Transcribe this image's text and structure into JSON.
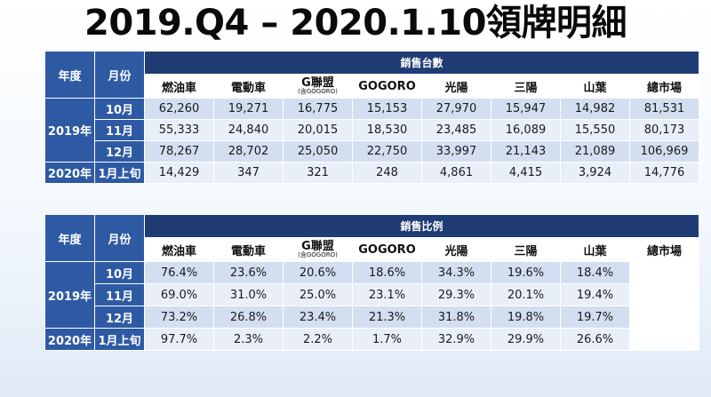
{
  "title": "2019.Q4 – 2020.1.10領牌明細",
  "headers": {
    "year": "年度",
    "month": "月份",
    "columns": [
      {
        "name": "燃油車",
        "note": ""
      },
      {
        "name": "電動車",
        "note": ""
      },
      {
        "name": "G聯盟",
        "note": "(含GOGORO)"
      },
      {
        "name": "GOGORO",
        "note": ""
      },
      {
        "name": "光陽",
        "note": ""
      },
      {
        "name": "三陽",
        "note": ""
      },
      {
        "name": "山葉",
        "note": ""
      },
      {
        "name": "總市場",
        "note": ""
      }
    ]
  },
  "sales_count": {
    "group_title": "銷售台數",
    "year_2019": "2019年",
    "year_2020": "2020年",
    "rows": [
      {
        "month": "10月",
        "values": [
          "62,260",
          "19,271",
          "16,775",
          "15,153",
          "27,970",
          "15,947",
          "14,982",
          "81,531"
        ]
      },
      {
        "month": "11月",
        "values": [
          "55,333",
          "24,840",
          "20,015",
          "18,530",
          "23,485",
          "16,089",
          "15,550",
          "80,173"
        ]
      },
      {
        "month": "12月",
        "values": [
          "78,267",
          "28,702",
          "25,050",
          "22,750",
          "33,997",
          "21,143",
          "21,089",
          "106,969"
        ]
      },
      {
        "month": "1月上旬",
        "values": [
          "14,429",
          "347",
          "321",
          "248",
          "4,861",
          "4,415",
          "3,924",
          "14,776"
        ]
      }
    ]
  },
  "sales_ratio": {
    "group_title": "銷售比例",
    "year_2019": "2019年",
    "year_2020": "2020年",
    "rows": [
      {
        "month": "10月",
        "values": [
          "76.4%",
          "23.6%",
          "20.6%",
          "18.6%",
          "34.3%",
          "19.6%",
          "18.4%",
          ""
        ]
      },
      {
        "month": "11月",
        "values": [
          "69.0%",
          "31.0%",
          "25.0%",
          "23.1%",
          "29.3%",
          "20.1%",
          "19.4%",
          ""
        ]
      },
      {
        "month": "12月",
        "values": [
          "73.2%",
          "26.8%",
          "23.4%",
          "21.3%",
          "31.8%",
          "19.8%",
          "19.7%",
          ""
        ]
      },
      {
        "month": "1月上旬",
        "values": [
          "97.7%",
          "2.3%",
          "2.2%",
          "1.7%",
          "32.9%",
          "29.9%",
          "26.6%",
          ""
        ]
      }
    ]
  }
}
